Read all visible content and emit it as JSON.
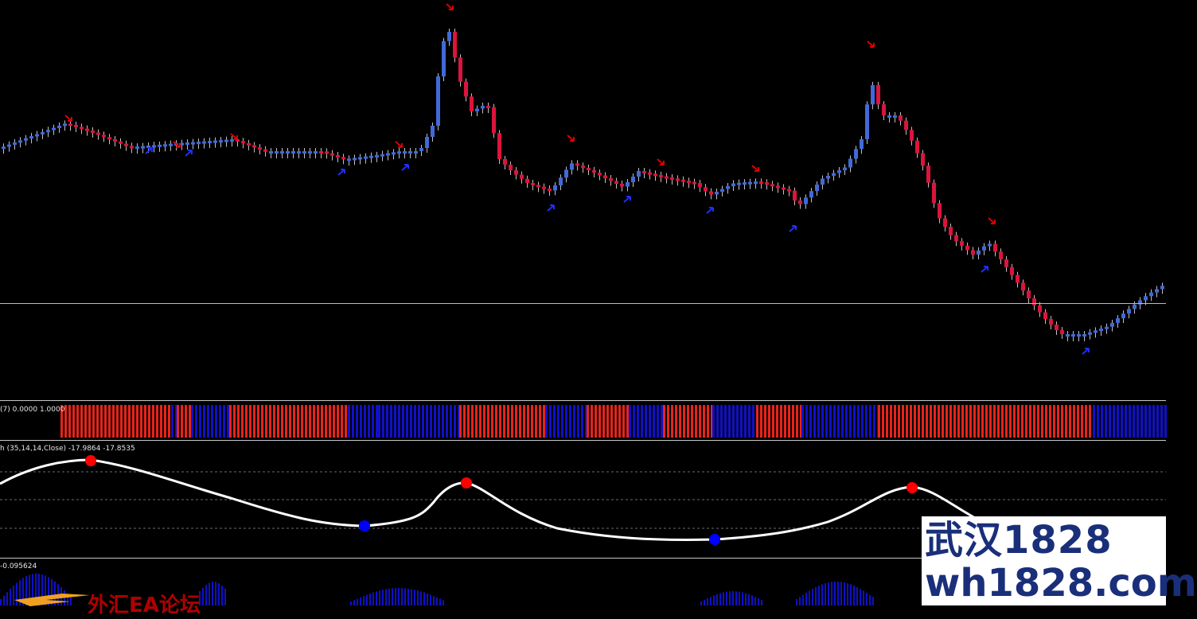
{
  "main_chart": {
    "name": "price-chart",
    "candles_up_color": "#4169d8",
    "candles_down_color": "#dc143c",
    "arrow_up_color": "#1e2fff",
    "arrow_down_color": "#e00000"
  },
  "pane1": {
    "label": "(7) 0.0000 1.0000",
    "red": "#e8231a",
    "blue": "#1010c8"
  },
  "pane2": {
    "label": "h (35,14,14,Close) -17.9864 -17.8535",
    "line_color": "#ffffff",
    "top_dot": "#ff0000",
    "bottom_dot": "#0000ff"
  },
  "pane3": {
    "label": "-0.095624",
    "bar_color": "#1010c8"
  },
  "watermark": {
    "line1": "武汉1828",
    "line2": "wh1828.com",
    "red_text": "外汇EA论坛"
  }
}
